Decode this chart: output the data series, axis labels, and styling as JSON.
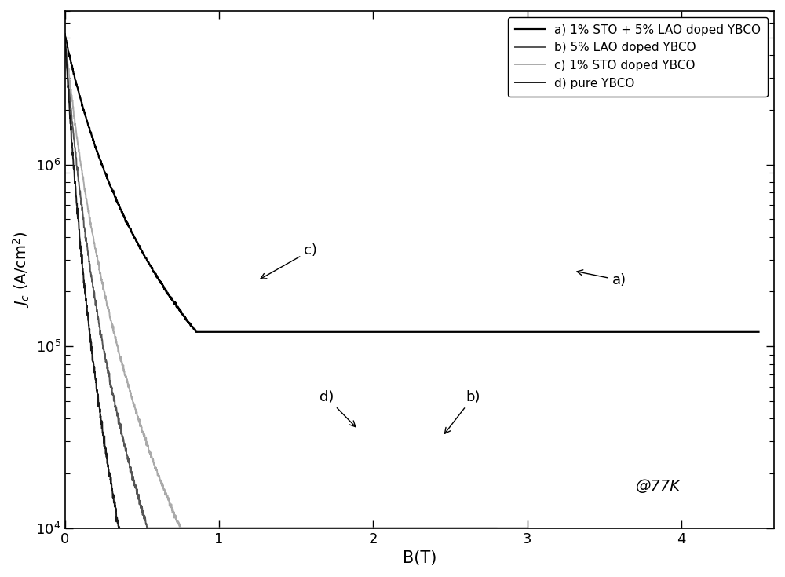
{
  "title": "",
  "xlabel": "B(T)",
  "ylabel": "$J_c$ (A/cm$^2$)",
  "xlim": [
    0,
    4.6
  ],
  "ylim_log": [
    10000.0,
    7000000.0
  ],
  "annotation_77K": "@77K",
  "legend_labels": [
    "a) 1% STO + 5% LAO doped YBCO",
    "b) 5% LAO doped YBCO",
    "c) 1% STO doped YBCO",
    "d) pure YBCO"
  ],
  "curve_colors": [
    "#000000",
    "#555555",
    "#aaaaaa",
    "#1a1a1a"
  ],
  "curve_linewidths": [
    1.6,
    1.4,
    1.4,
    1.4
  ],
  "background_color": "#ffffff",
  "seed": 42
}
